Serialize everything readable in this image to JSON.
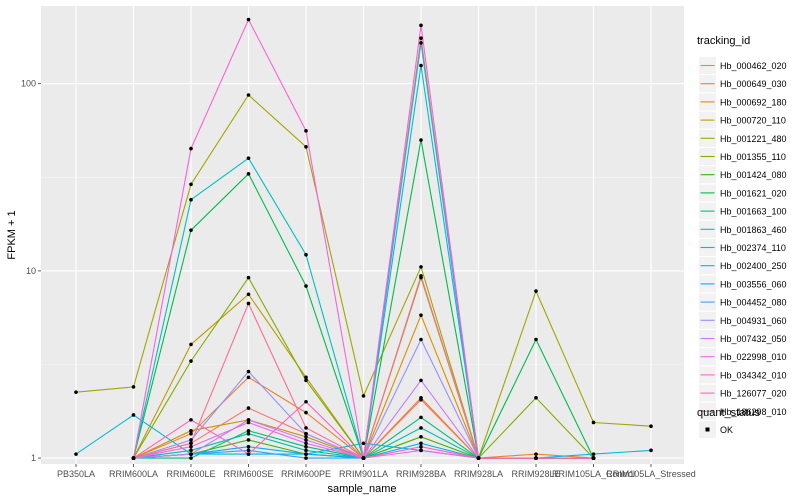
{
  "chart_data": {
    "type": "line",
    "xlabel": "sample_name",
    "ylabel": "FPKM + 1",
    "yscale": "log10",
    "ylim": [
      0.93,
      260
    ],
    "y_ticks": [
      1,
      10,
      100
    ],
    "y_tick_labels": [
      "1",
      "10",
      "100"
    ],
    "categories": [
      "PB350LA",
      "RRIM600LA",
      "RRIM600LE",
      "RRIM600SE",
      "RRIM600PE",
      "RRIM901LA",
      "RRIM928BA",
      "RRIM928LA",
      "RRIM928LE",
      "RRIM105LA_Control",
      "RRIM105LA_Stressed"
    ],
    "legend": {
      "title": "tracking_id",
      "shape_title": "quant_status",
      "shape_entry": "OK"
    },
    "series": [
      {
        "name": "Hb_000462_020",
        "color": "#F8766D",
        "values": [
          null,
          1.0,
          1.2,
          1.85,
          1.35,
          1.0,
          2.05,
          1.0,
          1.0,
          1.0,
          null
        ]
      },
      {
        "name": "Hb_000649_030",
        "color": "#EA8331",
        "values": [
          null,
          1.0,
          1.35,
          2.7,
          1.75,
          1.0,
          2.1,
          1.0,
          1.05,
          1.0,
          null
        ]
      },
      {
        "name": "Hb_000692_180",
        "color": "#D89000",
        "values": [
          null,
          1.0,
          1.4,
          1.6,
          1.3,
          1.0,
          5.8,
          1.0,
          1.0,
          1.0,
          null
        ]
      },
      {
        "name": "Hb_000720_110",
        "color": "#C09B00",
        "values": [
          null,
          1.0,
          4.05,
          7.5,
          2.7,
          1.0,
          175.0,
          1.0,
          1.0,
          1.0,
          null
        ]
      },
      {
        "name": "Hb_001221_480",
        "color": "#A3A500",
        "values": [
          2.25,
          2.4,
          29.0,
          87.0,
          46.0,
          2.15,
          10.5,
          1.0,
          7.8,
          1.55,
          1.48
        ]
      },
      {
        "name": "Hb_001355_110",
        "color": "#7CAE00",
        "values": [
          null,
          1.0,
          3.3,
          9.2,
          2.6,
          1.0,
          9.2,
          1.0,
          2.1,
          1.0,
          null
        ]
      },
      {
        "name": "Hb_001424_080",
        "color": "#39B600",
        "values": [
          null,
          1.0,
          1.05,
          1.25,
          1.05,
          1.0,
          1.3,
          1.0,
          1.0,
          1.0,
          null
        ]
      },
      {
        "name": "Hb_001621_020",
        "color": "#00BB4E",
        "values": [
          null,
          1.0,
          16.5,
          33.0,
          8.3,
          1.0,
          50.0,
          1.0,
          4.3,
          1.0,
          null
        ]
      },
      {
        "name": "Hb_001663_100",
        "color": "#00BF7D",
        "values": [
          null,
          1.0,
          1.0,
          1.4,
          1.15,
          1.0,
          1.65,
          1.0,
          1.0,
          1.0,
          null
        ]
      },
      {
        "name": "Hb_001863_460",
        "color": "#00C1A3",
        "values": [
          null,
          1.0,
          1.1,
          1.35,
          1.1,
          1.0,
          1.45,
          1.0,
          1.0,
          1.0,
          null
        ]
      },
      {
        "name": "Hb_002374_110",
        "color": "#00BFC4",
        "values": [
          null,
          1.0,
          24.0,
          40.0,
          12.2,
          1.0,
          125.0,
          1.0,
          1.0,
          1.0,
          null
        ]
      },
      {
        "name": "Hb_002400_250",
        "color": "#00BAE0",
        "values": [
          1.05,
          1.7,
          1.05,
          1.05,
          1.05,
          1.2,
          1.1,
          1.0,
          1.0,
          1.05,
          1.1
        ]
      },
      {
        "name": "Hb_003556_060",
        "color": "#00B0F6",
        "values": [
          null,
          1.0,
          1.05,
          1.15,
          1.05,
          1.0,
          1.2,
          1.0,
          1.0,
          1.0,
          null
        ]
      },
      {
        "name": "Hb_004452_080",
        "color": "#35A2FF",
        "values": [
          null,
          1.0,
          1.05,
          1.1,
          1.0,
          1.0,
          165.0,
          1.0,
          1.0,
          1.0,
          null
        ]
      },
      {
        "name": "Hb_004931_060",
        "color": "#9590FF",
        "values": [
          null,
          1.0,
          1.25,
          2.9,
          1.35,
          1.0,
          4.3,
          1.0,
          1.0,
          1.0,
          null
        ]
      },
      {
        "name": "Hb_007432_050",
        "color": "#C77CFF",
        "values": [
          null,
          1.0,
          1.05,
          1.6,
          1.25,
          1.0,
          2.6,
          1.0,
          1.0,
          1.0,
          null
        ]
      },
      {
        "name": "Hb_022998_010",
        "color": "#E76BF3",
        "values": [
          null,
          1.0,
          1.15,
          1.55,
          1.2,
          1.0,
          1.1,
          1.0,
          1.0,
          1.0,
          null
        ]
      },
      {
        "name": "Hb_034342_010",
        "color": "#FA62DB",
        "values": [
          null,
          1.0,
          45.0,
          220.0,
          56.0,
          1.0,
          205.0,
          1.0,
          1.0,
          1.0,
          null
        ]
      },
      {
        "name": "Hb_126077_020",
        "color": "#FF62BC",
        "values": [
          null,
          1.0,
          1.6,
          1.05,
          2.0,
          1.0,
          1.15,
          1.0,
          1.0,
          1.0,
          null
        ]
      },
      {
        "name": "Hb_186298_010",
        "color": "#FF6C91",
        "values": [
          null,
          1.0,
          1.2,
          6.7,
          1.45,
          1.0,
          9.4,
          1.0,
          1.0,
          1.0,
          null
        ]
      }
    ]
  }
}
